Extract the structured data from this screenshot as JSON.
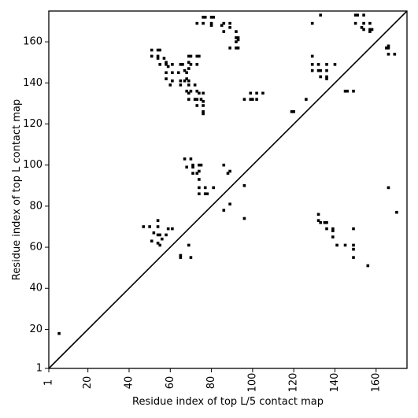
{
  "chart_data": {
    "type": "scatter",
    "title": "",
    "xlabel": "Residue index of top L/5 contact map",
    "ylabel": "Residue index of top L contact map",
    "xlim": [
      1,
      175
    ],
    "ylim": [
      1,
      175
    ],
    "xticks": [
      1,
      20,
      40,
      60,
      80,
      100,
      120,
      140,
      160
    ],
    "yticks": [
      1,
      20,
      40,
      60,
      80,
      100,
      120,
      140,
      160
    ],
    "diagonal": true,
    "grid": false,
    "marker": "square",
    "marker_color": "#000000",
    "series": [
      {
        "points": [
          [
            6,
            18
          ],
          [
            86,
            78
          ],
          [
            96,
            74
          ],
          [
            96,
            90
          ],
          [
            89,
            81
          ],
          [
            166,
            89
          ],
          [
            170,
            77
          ],
          [
            47,
            70
          ],
          [
            50,
            70
          ],
          [
            54,
            73
          ],
          [
            54,
            70
          ],
          [
            52,
            67
          ],
          [
            54,
            66
          ],
          [
            55,
            66
          ],
          [
            56,
            64
          ],
          [
            51,
            63
          ],
          [
            54,
            62
          ],
          [
            55,
            61
          ],
          [
            59,
            69
          ],
          [
            61,
            69
          ],
          [
            58,
            66
          ],
          [
            69,
            61
          ],
          [
            70,
            55
          ],
          [
            65,
            56
          ],
          [
            65,
            55
          ],
          [
            67,
            103
          ],
          [
            68,
            99
          ],
          [
            70,
            103
          ],
          [
            71,
            100
          ],
          [
            71,
            99
          ],
          [
            74,
            100
          ],
          [
            75,
            100
          ],
          [
            74,
            97
          ],
          [
            71,
            96
          ],
          [
            73,
            96
          ],
          [
            74,
            93
          ],
          [
            74,
            89
          ],
          [
            77,
            89
          ],
          [
            81,
            89
          ],
          [
            74,
            86
          ],
          [
            77,
            86
          ],
          [
            78,
            86
          ],
          [
            86,
            100
          ],
          [
            88,
            96
          ],
          [
            89,
            97
          ],
          [
            51,
            156
          ],
          [
            54,
            156
          ],
          [
            55,
            156
          ],
          [
            51,
            153
          ],
          [
            54,
            153
          ],
          [
            54,
            152
          ],
          [
            55,
            149
          ],
          [
            57,
            152
          ],
          [
            58,
            150
          ],
          [
            58,
            149
          ],
          [
            59,
            148
          ],
          [
            61,
            149
          ],
          [
            58,
            145
          ],
          [
            61,
            145
          ],
          [
            58,
            142
          ],
          [
            61,
            141
          ],
          [
            60,
            139
          ],
          [
            64,
            145
          ],
          [
            65,
            149
          ],
          [
            66,
            149
          ],
          [
            67,
            146
          ],
          [
            68,
            145
          ],
          [
            69,
            147
          ],
          [
            65,
            141
          ],
          [
            65,
            139
          ],
          [
            67,
            141
          ],
          [
            68,
            142
          ],
          [
            69,
            141
          ],
          [
            69,
            139
          ],
          [
            69,
            153
          ],
          [
            70,
            153
          ],
          [
            69,
            150
          ],
          [
            70,
            149
          ],
          [
            73,
            153
          ],
          [
            74,
            153
          ],
          [
            73,
            149
          ],
          [
            68,
            136
          ],
          [
            69,
            135
          ],
          [
            70,
            136
          ],
          [
            73,
            136
          ],
          [
            74,
            135
          ],
          [
            72,
            139
          ],
          [
            69,
            132
          ],
          [
            72,
            132
          ],
          [
            73,
            132
          ],
          [
            75,
            132
          ],
          [
            76,
            135
          ],
          [
            76,
            131
          ],
          [
            76,
            129
          ],
          [
            73,
            129
          ],
          [
            76,
            126
          ],
          [
            76,
            125
          ],
          [
            73,
            169
          ],
          [
            76,
            172
          ],
          [
            77,
            172
          ],
          [
            76,
            169
          ],
          [
            80,
            172
          ],
          [
            81,
            172
          ],
          [
            80,
            169
          ],
          [
            80,
            168
          ],
          [
            85,
            168
          ],
          [
            86,
            169
          ],
          [
            86,
            165
          ],
          [
            89,
            169
          ],
          [
            89,
            167
          ],
          [
            92,
            165
          ],
          [
            92,
            162
          ],
          [
            93,
            162
          ],
          [
            92,
            160
          ],
          [
            93,
            161
          ],
          [
            89,
            157
          ],
          [
            92,
            157
          ],
          [
            93,
            157
          ],
          [
            96,
            132
          ],
          [
            99,
            135
          ],
          [
            99,
            132
          ],
          [
            100,
            132
          ],
          [
            102,
            135
          ],
          [
            102,
            132
          ],
          [
            105,
            135
          ],
          [
            119,
            126
          ],
          [
            120,
            126
          ],
          [
            126,
            132
          ],
          [
            129,
            169
          ],
          [
            133,
            173
          ],
          [
            150,
            173
          ],
          [
            151,
            173
          ],
          [
            154,
            173
          ],
          [
            150,
            169
          ],
          [
            154,
            169
          ],
          [
            153,
            167
          ],
          [
            154,
            166
          ],
          [
            157,
            169
          ],
          [
            157,
            166
          ],
          [
            158,
            166
          ],
          [
            157,
            165
          ],
          [
            166,
            158
          ],
          [
            165,
            157
          ],
          [
            166,
            157
          ],
          [
            166,
            154
          ],
          [
            169,
            154
          ],
          [
            129,
            153
          ],
          [
            129,
            149
          ],
          [
            132,
            149
          ],
          [
            129,
            146
          ],
          [
            132,
            146
          ],
          [
            133,
            146
          ],
          [
            133,
            143
          ],
          [
            136,
            149
          ],
          [
            136,
            146
          ],
          [
            136,
            143
          ],
          [
            136,
            142
          ],
          [
            140,
            149
          ],
          [
            145,
            136
          ],
          [
            146,
            136
          ],
          [
            149,
            136
          ],
          [
            132,
            76
          ],
          [
            132,
            73
          ],
          [
            133,
            72
          ],
          [
            135,
            72
          ],
          [
            136,
            72
          ],
          [
            136,
            69
          ],
          [
            139,
            69
          ],
          [
            139,
            68
          ],
          [
            139,
            65
          ],
          [
            141,
            61
          ],
          [
            145,
            61
          ],
          [
            149,
            69
          ],
          [
            149,
            61
          ],
          [
            149,
            59
          ],
          [
            149,
            55
          ],
          [
            156,
            51
          ]
        ]
      }
    ]
  }
}
